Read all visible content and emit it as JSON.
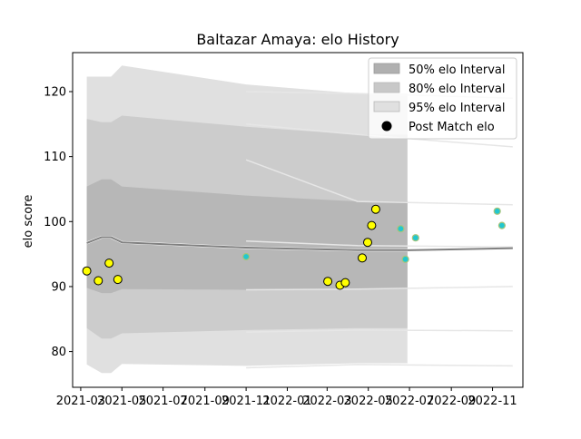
{
  "chart_data": {
    "type": "line",
    "title": "Baltazar Amaya: elo History",
    "xlabel": "",
    "ylabel": "elo score",
    "xlim": [
      "2021-02-17",
      "2022-12-16"
    ],
    "ylim": [
      74.5,
      126.0
    ],
    "x_ticks": [
      "2021-03",
      "2021-05",
      "2021-07",
      "2021-09",
      "2021-11",
      "2022-01",
      "2022-03",
      "2022-05",
      "2022-07",
      "2022-09",
      "2022-11"
    ],
    "y_ticks": [
      80,
      90,
      100,
      110,
      120
    ],
    "legend": {
      "position": "top-right",
      "entries": [
        "50% elo Interval",
        "80% elo Interval",
        "95% elo Interval",
        "Post Match elo"
      ]
    },
    "bands": {
      "x": [
        "2021-03-10",
        "2021-04-01",
        "2021-04-15",
        "2021-05-01",
        "2021-11-01",
        "2022-04-15",
        "2022-06-28"
      ],
      "mean": [
        96.7,
        97.6,
        97.6,
        96.8,
        96.0,
        95.6,
        95.6
      ],
      "p50_lo": [
        89.8,
        89.0,
        89.0,
        89.6,
        89.5,
        89.6,
        89.6
      ],
      "p50_hi": [
        105.4,
        106.5,
        106.5,
        105.4,
        104.0,
        103.1,
        103.1
      ],
      "p80_lo": [
        83.6,
        82.0,
        82.0,
        82.8,
        83.3,
        83.6,
        83.6
      ],
      "p80_hi": [
        115.8,
        115.3,
        115.3,
        116.3,
        114.6,
        113.4,
        113.4
      ],
      "p95_lo": [
        78.0,
        76.7,
        76.7,
        78.1,
        77.8,
        78.2,
        78.2
      ],
      "p95_hi": [
        122.3,
        122.3,
        122.3,
        124.0,
        121.1,
        119.7,
        119.7
      ],
      "colors": {
        "p50": "#b0b0b0",
        "p80": "#c8c8c8",
        "p95": "#e0e0e0",
        "mean": "#808080"
      }
    },
    "extension_lines": {
      "x": [
        "2021-11-01",
        "2022-04-15",
        "2022-12-01"
      ],
      "lines": [
        [
          120.0,
          119.7,
          119.0
        ],
        [
          115.0,
          113.4,
          111.5
        ],
        [
          109.5,
          103.1,
          102.6
        ],
        [
          97.0,
          96.3,
          96.1
        ],
        [
          89.5,
          89.6,
          90.0
        ],
        [
          83.0,
          83.3,
          83.2
        ],
        [
          77.5,
          78.0,
          77.8
        ]
      ],
      "color": "#e6e6e6"
    },
    "series": [
      {
        "name": "Post Match elo",
        "x": [
          "2021-03-10",
          "2021-03-27",
          "2021-04-12",
          "2021-04-25",
          "2022-03-02",
          "2022-03-20",
          "2022-03-28",
          "2022-04-22",
          "2022-04-30",
          "2022-05-06",
          "2022-05-12"
        ],
        "y": [
          92.4,
          90.9,
          93.6,
          91.1,
          90.8,
          90.2,
          90.6,
          94.4,
          96.8,
          99.4,
          101.9
        ],
        "color": "#ffff00"
      },
      {
        "name": "",
        "x": [
          "2021-11-01",
          "2022-06-18",
          "2022-06-25",
          "2022-07-10",
          "2022-11-08",
          "2022-11-15"
        ],
        "y": [
          94.6,
          98.9,
          94.2,
          97.5,
          101.6,
          99.4
        ],
        "color": "#22c7cf"
      }
    ],
    "grid": false
  }
}
